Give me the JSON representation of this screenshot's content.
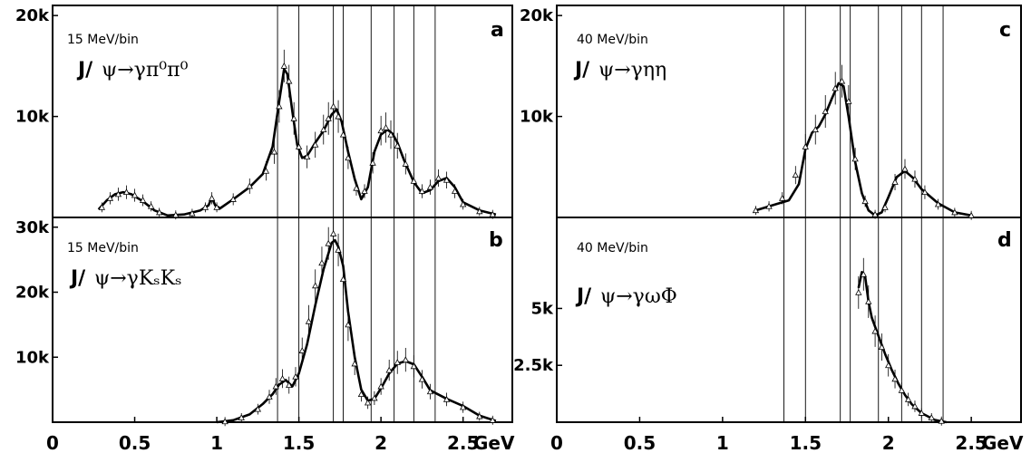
{
  "chart_data": [
    {
      "panel_letter": "a",
      "type": "line",
      "bin_label": "15 MeV/bin",
      "reaction": {
        "prefix": "J/",
        "body": "ψ→γπ⁰π⁰"
      },
      "xlim": [
        0,
        2.8
      ],
      "ylim": [
        0,
        21000
      ],
      "y_ticks": [
        {
          "value": 10000,
          "label": "10k"
        },
        {
          "value": 20000,
          "label": "20k"
        }
      ],
      "x_ticks": [],
      "x_unit": "",
      "vertical_lines": [
        1.37,
        1.5,
        1.71,
        1.77,
        1.94,
        2.08,
        2.2,
        2.33
      ],
      "series": [
        {
          "kind": "fit",
          "x": [
            0.28,
            0.33,
            0.38,
            0.43,
            0.48,
            0.55,
            0.62,
            0.7,
            0.8,
            0.9,
            0.95,
            0.97,
            0.99,
            1.02,
            1.1,
            1.2,
            1.28,
            1.34,
            1.38,
            1.41,
            1.43,
            1.46,
            1.49,
            1.52,
            1.55,
            1.6,
            1.65,
            1.7,
            1.73,
            1.76,
            1.8,
            1.84,
            1.88,
            1.92,
            1.96,
            2.0,
            2.04,
            2.07,
            2.1,
            2.14,
            2.2,
            2.25,
            2.3,
            2.35,
            2.4,
            2.45,
            2.5,
            2.6,
            2.7
          ],
          "y": [
            800,
            1700,
            2300,
            2500,
            2300,
            1600,
            700,
            200,
            300,
            700,
            1200,
            2000,
            1200,
            900,
            1800,
            3000,
            4300,
            7000,
            11500,
            14700,
            14200,
            10500,
            7200,
            5900,
            6100,
            7400,
            8600,
            10200,
            10700,
            9500,
            6500,
            3800,
            1800,
            3000,
            6500,
            8200,
            8700,
            8300,
            7400,
            5700,
            3500,
            2400,
            2700,
            3600,
            3900,
            3000,
            1500,
            700,
            300
          ]
        },
        {
          "kind": "data",
          "x": [
            0.3,
            0.35,
            0.4,
            0.45,
            0.5,
            0.55,
            0.6,
            0.65,
            0.75,
            0.85,
            0.93,
            0.97,
            1.0,
            1.1,
            1.2,
            1.3,
            1.35,
            1.38,
            1.41,
            1.44,
            1.47,
            1.5,
            1.55,
            1.6,
            1.65,
            1.68,
            1.71,
            1.74,
            1.77,
            1.8,
            1.85,
            1.9,
            1.95,
            2.0,
            2.03,
            2.06,
            2.1,
            2.15,
            2.2,
            2.25,
            2.3,
            2.35,
            2.4,
            2.45,
            2.5,
            2.6,
            2.68
          ],
          "y": [
            1000,
            1900,
            2300,
            2500,
            2200,
            1700,
            1100,
            500,
            250,
            400,
            1000,
            1900,
            1000,
            1800,
            3100,
            4600,
            6500,
            11000,
            15000,
            13500,
            9800,
            7000,
            6000,
            7200,
            8700,
            9800,
            11000,
            10000,
            8200,
            5900,
            2900,
            2600,
            5400,
            8600,
            8900,
            8200,
            7100,
            5300,
            3600,
            2600,
            3000,
            3900,
            3700,
            2600,
            1300,
            600,
            300
          ]
        }
      ]
    },
    {
      "panel_letter": "b",
      "type": "line",
      "bin_label": "15 MeV/bin",
      "reaction": {
        "prefix": "J/",
        "body": "ψ→γKₛKₛ"
      },
      "xlim": [
        0,
        2.8
      ],
      "ylim": [
        0,
        31500
      ],
      "y_ticks": [
        {
          "value": 10000,
          "label": "10k"
        },
        {
          "value": 20000,
          "label": "20k"
        },
        {
          "value": 30000,
          "label": "30k"
        }
      ],
      "x_ticks": [
        {
          "value": 0,
          "label": "0"
        },
        {
          "value": 0.5,
          "label": "0.5"
        },
        {
          "value": 1,
          "label": "1"
        },
        {
          "value": 1.5,
          "label": "1.5"
        },
        {
          "value": 2,
          "label": "2"
        },
        {
          "value": 2.5,
          "label": "2.5"
        }
      ],
      "x_unit": "GeV",
      "vertical_lines": [
        1.37,
        1.5,
        1.71,
        1.77,
        1.94,
        2.08,
        2.2,
        2.33
      ],
      "series": [
        {
          "kind": "fit",
          "x": [
            1.0,
            1.1,
            1.2,
            1.28,
            1.34,
            1.38,
            1.42,
            1.46,
            1.5,
            1.55,
            1.6,
            1.65,
            1.7,
            1.72,
            1.74,
            1.77,
            1.8,
            1.84,
            1.88,
            1.92,
            1.96,
            2.0,
            2.05,
            2.1,
            2.15,
            2.2,
            2.25,
            2.3,
            2.4,
            2.5,
            2.6,
            2.7
          ],
          "y": [
            0,
            300,
            1200,
            2800,
            4300,
            5800,
            6500,
            5500,
            7500,
            12000,
            18000,
            23500,
            27600,
            28000,
            27000,
            24000,
            17000,
            10000,
            5000,
            3300,
            3600,
            5200,
            7500,
            9000,
            9400,
            8900,
            7000,
            4900,
            3600,
            2500,
            1000,
            200
          ]
        },
        {
          "kind": "data",
          "x": [
            1.05,
            1.15,
            1.25,
            1.32,
            1.36,
            1.4,
            1.44,
            1.48,
            1.52,
            1.56,
            1.6,
            1.64,
            1.68,
            1.71,
            1.74,
            1.77,
            1.8,
            1.84,
            1.88,
            1.92,
            1.96,
            2.0,
            2.05,
            2.1,
            2.15,
            2.2,
            2.25,
            2.3,
            2.4,
            2.5,
            2.6,
            2.68
          ],
          "y": [
            100,
            700,
            2000,
            3900,
            5500,
            6700,
            5700,
            7000,
            11000,
            15500,
            21000,
            24500,
            27500,
            29000,
            26500,
            22000,
            15000,
            9000,
            4300,
            3000,
            3700,
            5500,
            8000,
            9200,
            9600,
            8600,
            6600,
            4700,
            3500,
            2300,
            900,
            300
          ]
        }
      ]
    },
    {
      "panel_letter": "c",
      "type": "line",
      "bin_label": "40 MeV/bin",
      "reaction": {
        "prefix": "J/",
        "body": "ψ→γηη"
      },
      "xlim": [
        0,
        2.8
      ],
      "ylim": [
        0,
        21000
      ],
      "y_ticks": [
        {
          "value": 10000,
          "label": "10k"
        },
        {
          "value": 20000,
          "label": "20k"
        }
      ],
      "x_ticks": [],
      "x_unit": "",
      "vertical_lines": [
        1.37,
        1.5,
        1.71,
        1.77,
        1.94,
        2.08,
        2.2,
        2.33
      ],
      "series": [
        {
          "kind": "fit",
          "x": [
            1.2,
            1.3,
            1.4,
            1.46,
            1.5,
            1.54,
            1.58,
            1.62,
            1.66,
            1.7,
            1.73,
            1.76,
            1.8,
            1.84,
            1.88,
            1.92,
            1.96,
            2.0,
            2.05,
            2.1,
            2.15,
            2.2,
            2.3,
            2.4,
            2.5
          ],
          "y": [
            700,
            1200,
            1700,
            3300,
            6800,
            8400,
            9000,
            10200,
            11800,
            13300,
            13000,
            10000,
            5500,
            2400,
            700,
            200,
            500,
            2000,
            4000,
            4600,
            3900,
            2800,
            1400,
            500,
            200
          ]
        },
        {
          "kind": "data",
          "x": [
            1.2,
            1.28,
            1.36,
            1.44,
            1.5,
            1.56,
            1.62,
            1.68,
            1.72,
            1.76,
            1.8,
            1.86,
            1.92,
            1.98,
            2.04,
            2.1,
            2.16,
            2.22,
            2.3,
            2.4,
            2.5
          ],
          "y": [
            700,
            1100,
            1900,
            4200,
            7000,
            8700,
            10500,
            12800,
            13500,
            11500,
            5800,
            1600,
            300,
            1000,
            3500,
            4800,
            3800,
            2500,
            1300,
            500,
            200
          ]
        }
      ]
    },
    {
      "panel_letter": "d",
      "type": "line",
      "bin_label": "40 MeV/bin",
      "reaction": {
        "prefix": "J/",
        "body": "ψ→γωΦ"
      },
      "xlim": [
        0,
        2.8
      ],
      "ylim": [
        0,
        9000
      ],
      "y_ticks": [
        {
          "value": 2500,
          "label": "2.5k"
        },
        {
          "value": 5000,
          "label": "5k"
        }
      ],
      "x_ticks": [
        {
          "value": 0,
          "label": "0"
        },
        {
          "value": 0.5,
          "label": "0.5"
        },
        {
          "value": 1,
          "label": "1"
        },
        {
          "value": 1.5,
          "label": "1.5"
        },
        {
          "value": 2,
          "label": "2"
        },
        {
          "value": 2.5,
          "label": "2.5"
        }
      ],
      "x_unit": "GeV",
      "vertical_lines": [
        1.37,
        1.5,
        1.71,
        1.77,
        1.94,
        2.08,
        2.2,
        2.33
      ],
      "series": [
        {
          "kind": "fit",
          "x": [
            1.82,
            1.84,
            1.86,
            1.88,
            1.9,
            1.94,
            1.98,
            2.02,
            2.06,
            2.1,
            2.14,
            2.2,
            2.28,
            2.35
          ],
          "y": [
            5900,
            6600,
            6400,
            5300,
            4600,
            3800,
            3000,
            2300,
            1700,
            1200,
            800,
            400,
            100,
            0
          ]
        },
        {
          "kind": "data",
          "x": [
            1.82,
            1.85,
            1.88,
            1.92,
            1.96,
            2.0,
            2.04,
            2.08,
            2.12,
            2.16,
            2.2,
            2.26,
            2.32
          ],
          "y": [
            5700,
            6500,
            5300,
            4000,
            3300,
            2500,
            1900,
            1400,
            1000,
            700,
            400,
            200,
            50
          ]
        }
      ]
    }
  ]
}
